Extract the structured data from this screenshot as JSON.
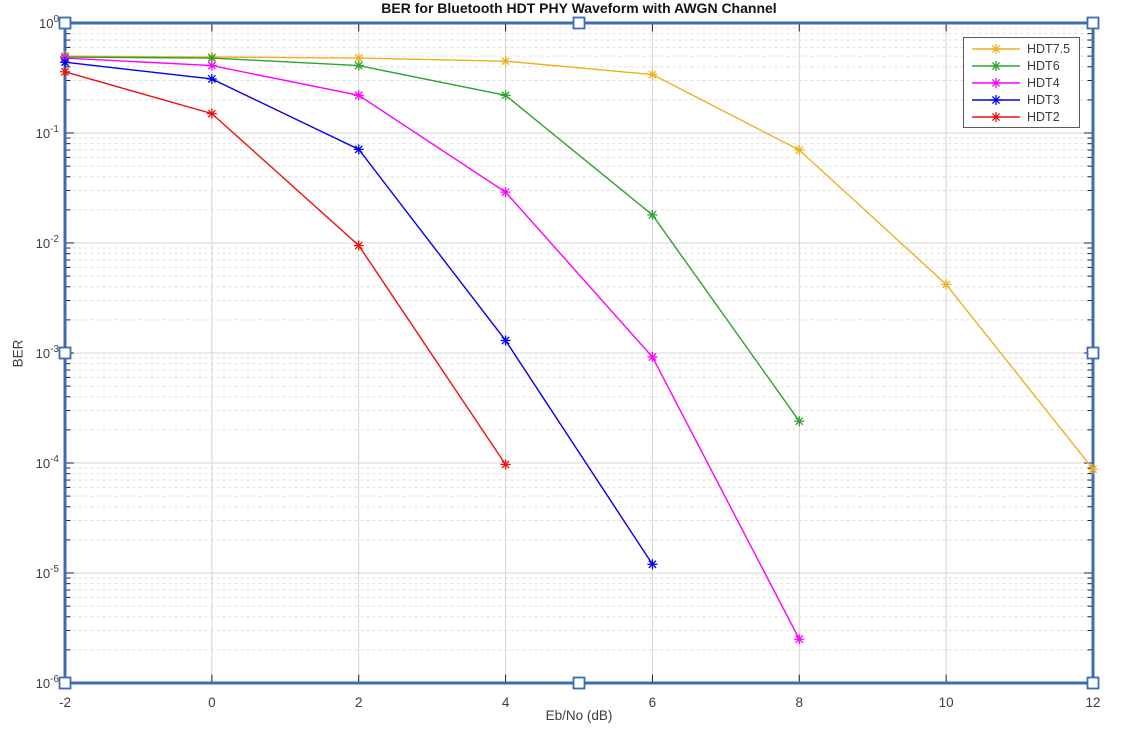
{
  "chart_data": {
    "type": "line",
    "title": "BER for Bluetooth HDT PHY Waveform with AWGN Channel",
    "xlabel": "Eb/No (dB)",
    "ylabel": "BER",
    "xlim": [
      -2,
      12
    ],
    "ylim": [
      1e-06,
      1
    ],
    "yscale": "log",
    "x_ticks": [
      -2,
      0,
      2,
      4,
      6,
      8,
      10,
      12
    ],
    "y_tick_exponents": [
      0,
      -1,
      -2,
      -3,
      -4,
      -5,
      -6
    ],
    "grid": {
      "major": "solid",
      "minor_y": "dashed log decades",
      "major_color": "#d4d4d4",
      "minor_color": "#dddddd"
    },
    "legend_position": "top-right-inside",
    "marker": "asterisk",
    "series": [
      {
        "name": "HDT7.5",
        "color": "#EDB120",
        "x": [
          -2,
          0,
          2,
          4,
          6,
          8,
          10,
          12
        ],
        "y": [
          0.5,
          0.49,
          0.48,
          0.45,
          0.34,
          0.07,
          0.0042,
          8.8e-05
        ]
      },
      {
        "name": "HDT6",
        "color": "#2EA32E",
        "x": [
          -2,
          0,
          2,
          4,
          6,
          8
        ],
        "y": [
          0.49,
          0.48,
          0.41,
          0.22,
          0.018,
          0.00024
        ]
      },
      {
        "name": "HDT4",
        "color": "#FF00FF",
        "x": [
          -2,
          0,
          2,
          4,
          6,
          8
        ],
        "y": [
          0.48,
          0.41,
          0.22,
          0.029,
          0.00092,
          2.5e-06
        ]
      },
      {
        "name": "HDT3",
        "color": "#0000EE",
        "x": [
          -2,
          0,
          2,
          4,
          6
        ],
        "y": [
          0.44,
          0.31,
          0.071,
          0.0013,
          1.2e-05
        ]
      },
      {
        "name": "HDT2",
        "color": "#EE1111",
        "x": [
          -2,
          0,
          2,
          4
        ],
        "y": [
          0.36,
          0.15,
          0.0095,
          9.7e-05
        ]
      }
    ]
  },
  "selection": {
    "mode": "plot-edit axes selected",
    "border_color": "#3b6cb5",
    "handle_fill": "#ffffff",
    "handle_count": 8
  },
  "colors": {
    "background": "#ffffff",
    "tick_label": "#3e3e3e",
    "tick_mark": "#222222",
    "title_text": "#141414",
    "legend_border": "#5a5a5a",
    "legend_text": "#3a3a3a"
  }
}
